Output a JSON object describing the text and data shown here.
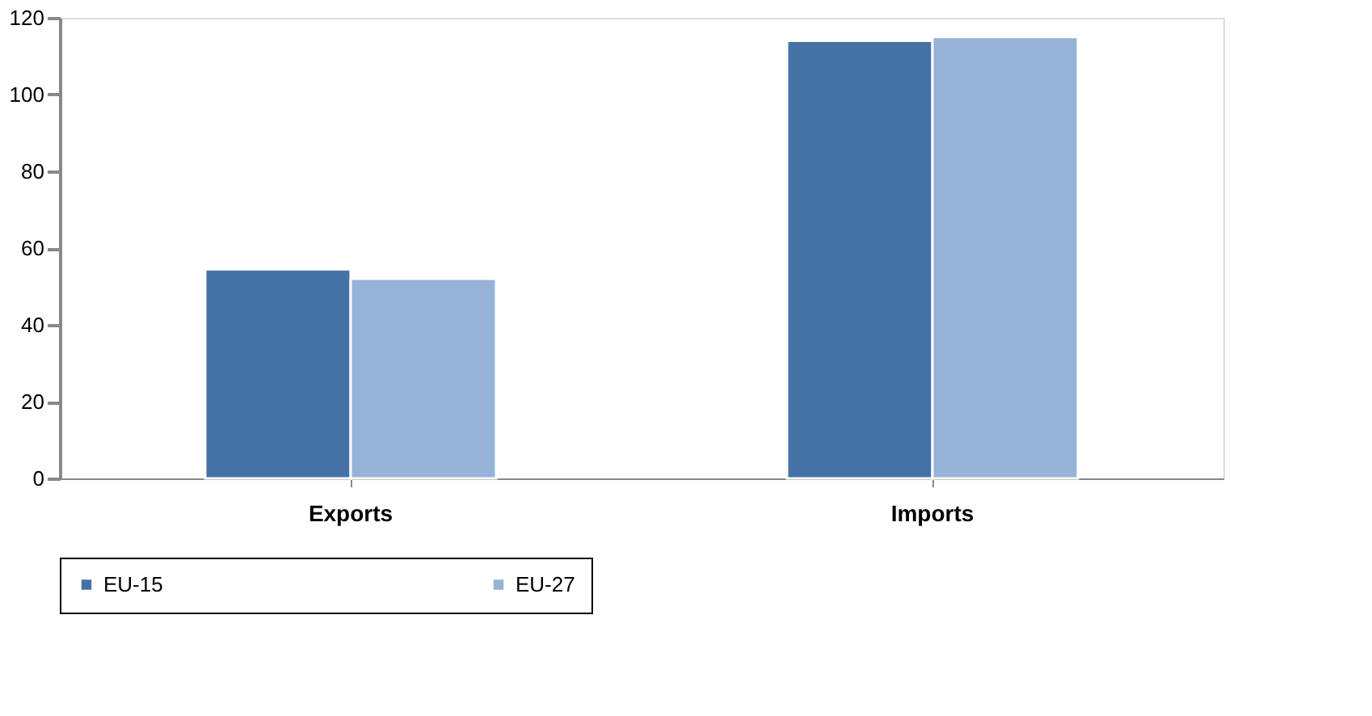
{
  "chart_data": {
    "type": "bar",
    "categories": [
      "Exports",
      "Imports"
    ],
    "series": [
      {
        "name": "EU-15",
        "color": "#4472a6",
        "values": [
          54.5,
          114
        ]
      },
      {
        "name": "EU-27",
        "color": "#95b3d7",
        "values": [
          52,
          115
        ]
      }
    ],
    "ylim": [
      0,
      120
    ],
    "yticks": [
      0,
      20,
      40,
      60,
      80,
      100,
      120
    ],
    "grid": false,
    "legend": "bottom"
  }
}
